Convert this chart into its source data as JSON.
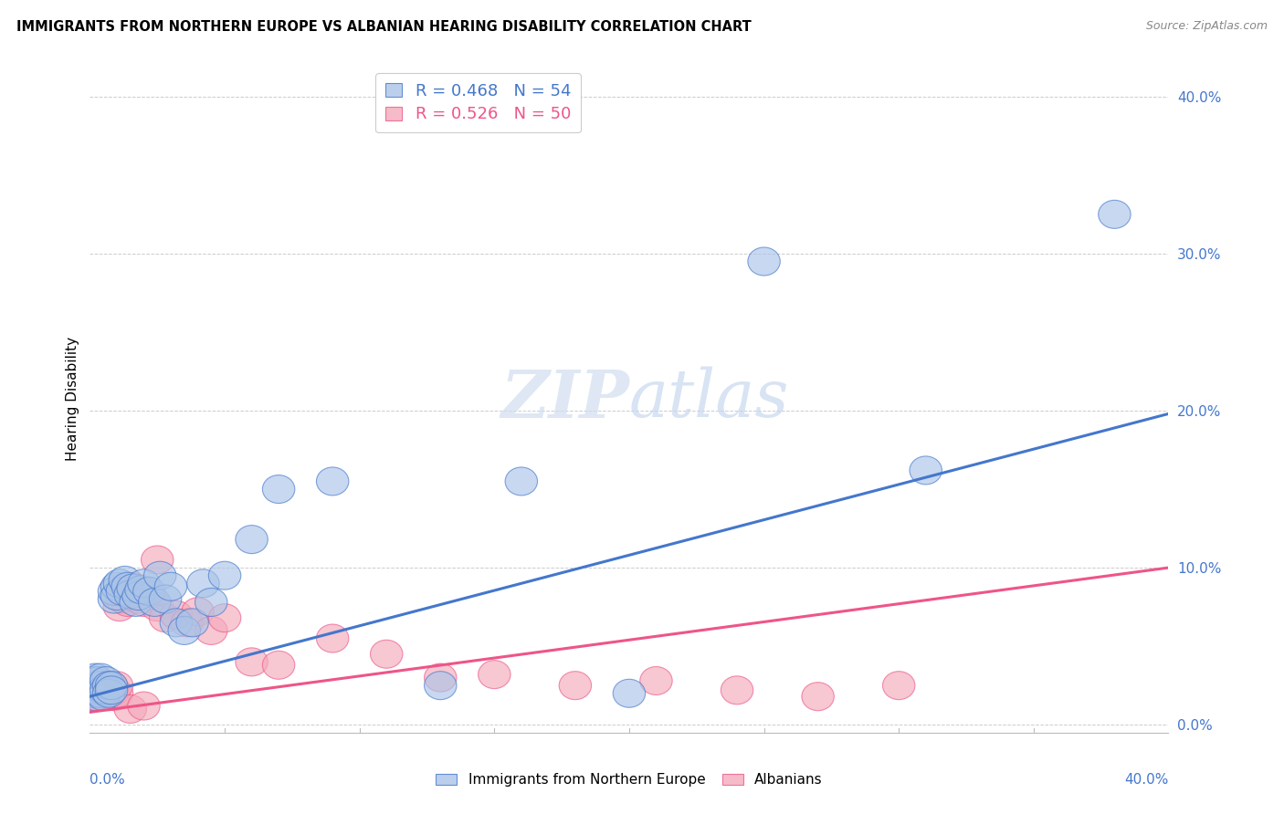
{
  "title": "IMMIGRANTS FROM NORTHERN EUROPE VS ALBANIAN HEARING DISABILITY CORRELATION CHART",
  "source": "Source: ZipAtlas.com",
  "ylabel": "Hearing Disability",
  "yticks": [
    "0.0%",
    "10.0%",
    "20.0%",
    "30.0%",
    "40.0%"
  ],
  "ytick_vals": [
    0.0,
    0.1,
    0.2,
    0.3,
    0.4
  ],
  "xlim": [
    0.0,
    0.4
  ],
  "ylim": [
    -0.005,
    0.42
  ],
  "legend_blue": "R = 0.468   N = 54",
  "legend_pink": "R = 0.526   N = 50",
  "blue_color": "#AAC4E8",
  "pink_color": "#F4AABB",
  "line_blue": "#4477CC",
  "line_pink": "#EE5588",
  "tick_color": "#4477CC",
  "blue_line_start_y": 0.018,
  "blue_line_end_y": 0.198,
  "pink_line_start_y": 0.008,
  "pink_line_end_y": 0.1,
  "blue_scatter_x": [
    0.001,
    0.001,
    0.001,
    0.002,
    0.002,
    0.002,
    0.003,
    0.003,
    0.003,
    0.004,
    0.004,
    0.004,
    0.005,
    0.005,
    0.006,
    0.006,
    0.007,
    0.007,
    0.008,
    0.008,
    0.009,
    0.009,
    0.01,
    0.01,
    0.011,
    0.012,
    0.013,
    0.014,
    0.015,
    0.016,
    0.017,
    0.018,
    0.019,
    0.02,
    0.022,
    0.024,
    0.026,
    0.028,
    0.03,
    0.032,
    0.035,
    0.038,
    0.042,
    0.045,
    0.05,
    0.06,
    0.07,
    0.09,
    0.13,
    0.16,
    0.2,
    0.25,
    0.31,
    0.38
  ],
  "blue_scatter_y": [
    0.02,
    0.025,
    0.028,
    0.022,
    0.018,
    0.03,
    0.025,
    0.022,
    0.028,
    0.02,
    0.025,
    0.03,
    0.022,
    0.018,
    0.028,
    0.022,
    0.025,
    0.02,
    0.025,
    0.022,
    0.08,
    0.085,
    0.088,
    0.082,
    0.09,
    0.085,
    0.092,
    0.088,
    0.083,
    0.087,
    0.078,
    0.082,
    0.086,
    0.09,
    0.085,
    0.078,
    0.095,
    0.08,
    0.088,
    0.065,
    0.06,
    0.065,
    0.09,
    0.078,
    0.095,
    0.118,
    0.15,
    0.155,
    0.025,
    0.155,
    0.02,
    0.295,
    0.162,
    0.325
  ],
  "pink_scatter_x": [
    0.001,
    0.001,
    0.002,
    0.002,
    0.003,
    0.003,
    0.004,
    0.004,
    0.005,
    0.005,
    0.006,
    0.006,
    0.007,
    0.007,
    0.008,
    0.008,
    0.009,
    0.009,
    0.01,
    0.01,
    0.011,
    0.012,
    0.013,
    0.014,
    0.015,
    0.016,
    0.018,
    0.02,
    0.022,
    0.025,
    0.028,
    0.032,
    0.036,
    0.04,
    0.045,
    0.05,
    0.06,
    0.07,
    0.09,
    0.11,
    0.13,
    0.15,
    0.18,
    0.21,
    0.24,
    0.27,
    0.3,
    0.015,
    0.02,
    0.025
  ],
  "pink_scatter_y": [
    0.018,
    0.022,
    0.02,
    0.025,
    0.022,
    0.018,
    0.02,
    0.025,
    0.022,
    0.018,
    0.025,
    0.02,
    0.022,
    0.018,
    0.02,
    0.025,
    0.018,
    0.022,
    0.02,
    0.025,
    0.075,
    0.08,
    0.085,
    0.078,
    0.082,
    0.088,
    0.08,
    0.078,
    0.082,
    0.075,
    0.068,
    0.07,
    0.065,
    0.072,
    0.06,
    0.068,
    0.04,
    0.038,
    0.055,
    0.045,
    0.03,
    0.032,
    0.025,
    0.028,
    0.022,
    0.018,
    0.025,
    0.01,
    0.012,
    0.105
  ]
}
